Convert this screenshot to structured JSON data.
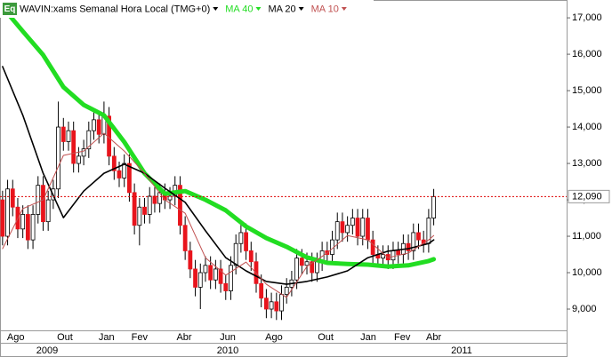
{
  "chart_data": {
    "type": "candlestick",
    "title": "WAVIN:xams Semanal Hora Local (TMG+0)",
    "icon_label": "Eq",
    "open": [
      12000,
      11000,
      12300,
      11800,
      11200,
      11600,
      10900,
      11600,
      12400,
      11400,
      12000,
      12300,
      14000,
      13600,
      13900,
      13000,
      13200,
      13400,
      13900,
      14200,
      13800,
      14300,
      13200,
      12800,
      12600,
      13000,
      12200,
      11300,
      11800,
      11600,
      12100,
      11900,
      12200,
      12000,
      12100,
      12400,
      11300,
      10600,
      10100,
      9600,
      10000,
      10200,
      9800,
      10100,
      9700,
      9500,
      10200,
      10800,
      11100,
      10600,
      10300,
      9700,
      9300,
      9000,
      9200,
      8950,
      9400,
      9600,
      9800,
      10400,
      10200,
      10300,
      10000,
      10300,
      10600,
      10500,
      10900,
      11400,
      11100,
      11300,
      11500,
      11000,
      11500,
      10900,
      10500,
      10400,
      10500,
      10350,
      10600,
      10500,
      10800,
      10600,
      11100,
      10900,
      10800,
      11500
    ],
    "high": [
      12250,
      12550,
      12550,
      12050,
      11850,
      11850,
      11850,
      12650,
      12650,
      12250,
      12550,
      14700,
      14250,
      14150,
      14150,
      13450,
      13650,
      14150,
      14450,
      14450,
      14700,
      14550,
      13450,
      13050,
      13250,
      13250,
      12450,
      12050,
      12050,
      12350,
      12350,
      12450,
      12450,
      12350,
      12650,
      12650,
      11550,
      10850,
      10350,
      10250,
      10450,
      10450,
      10350,
      10350,
      9950,
      10450,
      11050,
      11350,
      11350,
      10850,
      10550,
      9950,
      9550,
      9450,
      9450,
      9650,
      9850,
      10050,
      10650,
      10650,
      10550,
      10550,
      10550,
      10850,
      10850,
      11150,
      11650,
      11650,
      11550,
      11750,
      11750,
      11750,
      11750,
      11150,
      10750,
      10750,
      10750,
      10850,
      10850,
      11050,
      11050,
      11350,
      11350,
      11150,
      11750,
      12300
    ],
    "low": [
      10750,
      10750,
      11550,
      10950,
      10950,
      10650,
      10650,
      11350,
      11150,
      11150,
      11750,
      12050,
      13350,
      13350,
      12750,
      12750,
      12950,
      13150,
      13650,
      13550,
      13550,
      12950,
      12550,
      12350,
      12350,
      11950,
      11050,
      10750,
      11350,
      11350,
      11650,
      11650,
      11750,
      11750,
      11850,
      11050,
      10350,
      9850,
      9350,
      9000,
      9750,
      9550,
      9550,
      9450,
      9250,
      9250,
      9950,
      10550,
      10350,
      10050,
      9450,
      9050,
      8750,
      8750,
      8700,
      8700,
      9150,
      9350,
      9550,
      9950,
      9950,
      9750,
      9750,
      10050,
      10250,
      10250,
      10650,
      10850,
      10850,
      11050,
      10750,
      10750,
      10650,
      10250,
      10150,
      10150,
      10100,
      10100,
      10250,
      10250,
      10350,
      10350,
      10650,
      10550,
      10550,
      11300
    ],
    "close": [
      11000,
      12300,
      11800,
      11200,
      11600,
      10900,
      11600,
      12400,
      11400,
      12000,
      12300,
      14000,
      13600,
      13900,
      13000,
      13200,
      13400,
      13900,
      14200,
      13800,
      14300,
      13200,
      12800,
      12600,
      13000,
      12200,
      11300,
      11800,
      11600,
      12100,
      11900,
      12200,
      12000,
      12100,
      12400,
      11300,
      10600,
      10100,
      9600,
      10000,
      10200,
      9800,
      10100,
      9700,
      9500,
      10200,
      10800,
      11100,
      10600,
      10300,
      9700,
      9300,
      9000,
      9200,
      8950,
      9400,
      9600,
      9800,
      10400,
      10200,
      10300,
      10000,
      10300,
      10600,
      10500,
      10900,
      11400,
      11100,
      11300,
      11500,
      11000,
      11500,
      10900,
      10500,
      10400,
      10500,
      10350,
      10600,
      10500,
      10800,
      10600,
      11100,
      10900,
      10800,
      11500,
      12090
    ],
    "last_close_label": "12,090",
    "up_color": "#ffffff",
    "down_color": "#e8141c",
    "series": [
      {
        "name": "MA 40",
        "color": "#22dd22",
        "x": [
          0,
          4,
          8,
          12,
          16,
          20,
          24,
          28,
          32,
          36,
          40,
          44,
          48,
          52,
          56,
          60,
          64,
          68,
          72,
          76,
          80,
          84,
          85
        ],
        "values": [
          17290,
          16630,
          15980,
          15100,
          14610,
          14320,
          13590,
          12730,
          12170,
          12240,
          12000,
          11710,
          11270,
          10950,
          10710,
          10420,
          10270,
          10240,
          10220,
          10170,
          10200,
          10320,
          10370
        ]
      },
      {
        "name": "MA 20",
        "color": "#000000",
        "x": [
          0,
          4,
          8,
          12,
          16,
          20,
          24,
          28,
          32,
          36,
          40,
          44,
          48,
          52,
          56,
          60,
          64,
          68,
          72,
          76,
          80,
          84,
          85
        ],
        "values": [
          15660,
          14320,
          12730,
          11510,
          12240,
          12730,
          12980,
          12730,
          12320,
          11930,
          11150,
          10410,
          10050,
          9760,
          9680,
          9760,
          9880,
          10050,
          10410,
          10590,
          10660,
          10800,
          10900
        ]
      },
      {
        "name": "MA 10",
        "color": "#c05050",
        "x": [
          0,
          4,
          8,
          12,
          16,
          20,
          24,
          28,
          32,
          36,
          40,
          44,
          48,
          52,
          56,
          60,
          64,
          68,
          72,
          76,
          80,
          84,
          85
        ],
        "values": [
          10660,
          11760,
          12000,
          13220,
          13340,
          13830,
          13340,
          12730,
          12000,
          11630,
          10410,
          9930,
          10290,
          9680,
          9320,
          10170,
          10540,
          11020,
          10900,
          10410,
          10540,
          10900,
          11020
        ]
      }
    ],
    "xlim": [
      -0.5,
      111.2
    ],
    "xticks": [
      {
        "value": 2.6,
        "label": "Ago"
      },
      {
        "value": 12.3,
        "label": "Out"
      },
      {
        "value": 20.5,
        "label": "Jan"
      },
      {
        "value": 27,
        "label": "Fev"
      },
      {
        "value": 35.8,
        "label": "Abr"
      },
      {
        "value": 44.4,
        "label": "Jun"
      },
      {
        "value": 53.5,
        "label": "Ago"
      },
      {
        "value": 63.7,
        "label": "Out"
      },
      {
        "value": 72.1,
        "label": "Jan"
      },
      {
        "value": 78.8,
        "label": "Fev"
      },
      {
        "value": 85,
        "label": "Abr"
      }
    ],
    "years": [
      {
        "value": 8.8,
        "label": "2009"
      },
      {
        "value": 44.4,
        "label": "2010"
      },
      {
        "value": 90.5,
        "label": "2011"
      }
    ],
    "ylim": [
      8415,
      17490
    ],
    "yticks": [
      {
        "value": 9000,
        "label": "9,000"
      },
      {
        "value": 10000,
        "label": "10,000"
      },
      {
        "value": 11000,
        "label": "11,000"
      },
      {
        "value": 12000,
        "label": "12,000"
      },
      {
        "value": 13000,
        "label": "13,000"
      },
      {
        "value": 14000,
        "label": "14,000"
      },
      {
        "value": 15000,
        "label": "15,000"
      },
      {
        "value": 16000,
        "label": "16,000"
      },
      {
        "value": 17000,
        "label": "17,000"
      }
    ]
  }
}
